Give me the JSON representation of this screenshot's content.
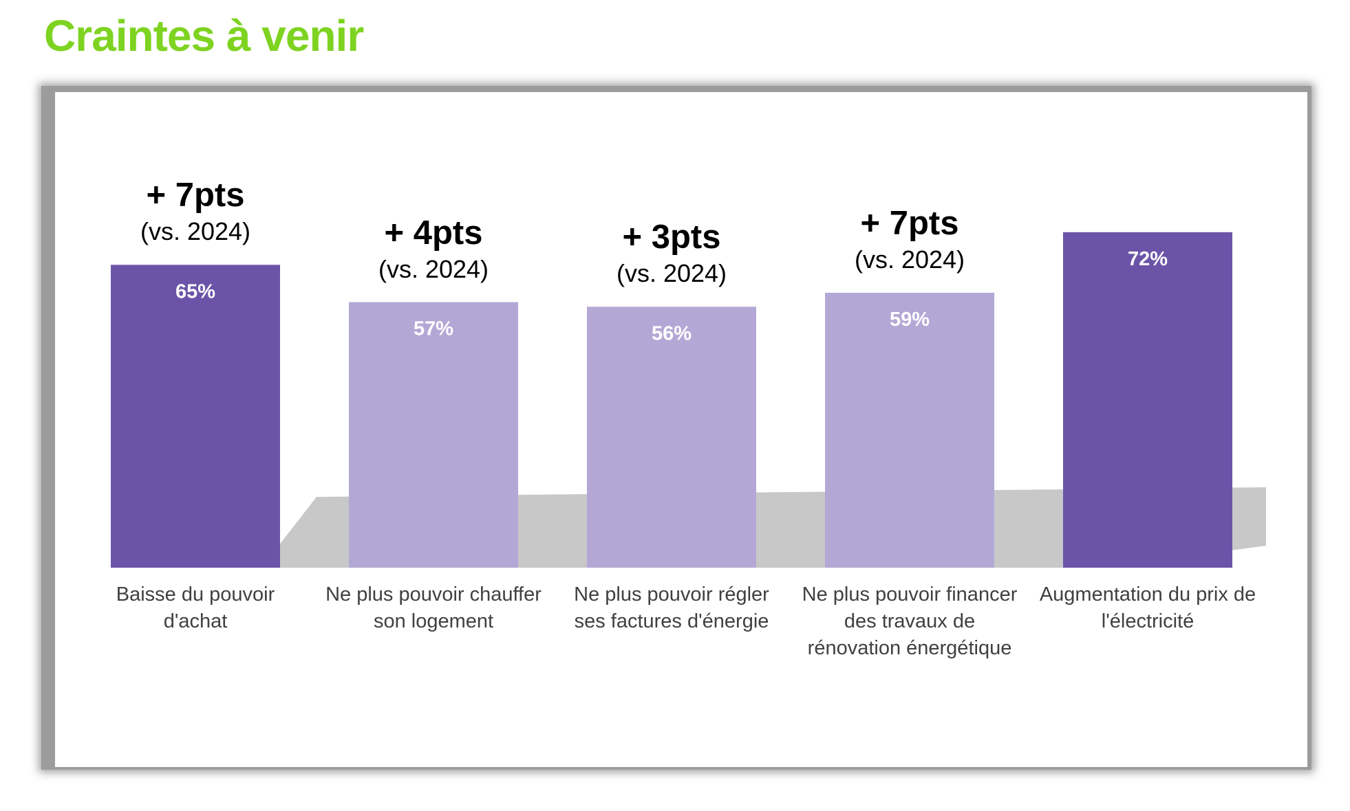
{
  "page": {
    "title": "Craintes à venir",
    "title_color": "#7ed321"
  },
  "colors": {
    "highlight": "#6b54a8",
    "standard": "#b3a8d5",
    "value_text": "#ffffff",
    "label_text": "#404040",
    "shadow": "#c8c8c8"
  },
  "chart_data": {
    "type": "bar",
    "title": "",
    "xlabel": "",
    "ylabel": "",
    "ylim": [
      0,
      100
    ],
    "grid": false,
    "legend": "none",
    "categories": [
      "Baisse du pouvoir d'achat",
      "Ne plus pouvoir chauffer son logement",
      "Ne plus pouvoir régler ses factures d'énergie",
      "Ne plus pouvoir financer des travaux de rénovation énergétique",
      "Augmentation du prix de l'électricité"
    ],
    "category_lines": [
      [
        "Baisse du pouvoir",
        "d'achat"
      ],
      [
        "Ne plus pouvoir chauffer",
        "son logement"
      ],
      [
        "Ne plus pouvoir régler",
        "ses factures d'énergie"
      ],
      [
        "Ne plus pouvoir financer",
        "des travaux de",
        "rénovation énergétique"
      ],
      [
        "Augmentation du prix de",
        "l'électricité"
      ]
    ],
    "values": [
      65,
      57,
      56,
      59,
      72
    ],
    "value_labels": [
      "65%",
      "57%",
      "56%",
      "59%",
      "72%"
    ],
    "highlighted": [
      true,
      false,
      false,
      false,
      true
    ],
    "annotations": [
      {
        "delta": "+ 7pts",
        "ref": "(vs. 2024)"
      },
      {
        "delta": "+ 4pts",
        "ref": "(vs. 2024)"
      },
      {
        "delta": "+ 3pts",
        "ref": "(vs. 2024)"
      },
      {
        "delta": "+ 7pts",
        "ref": "(vs. 2024)"
      },
      null
    ]
  }
}
